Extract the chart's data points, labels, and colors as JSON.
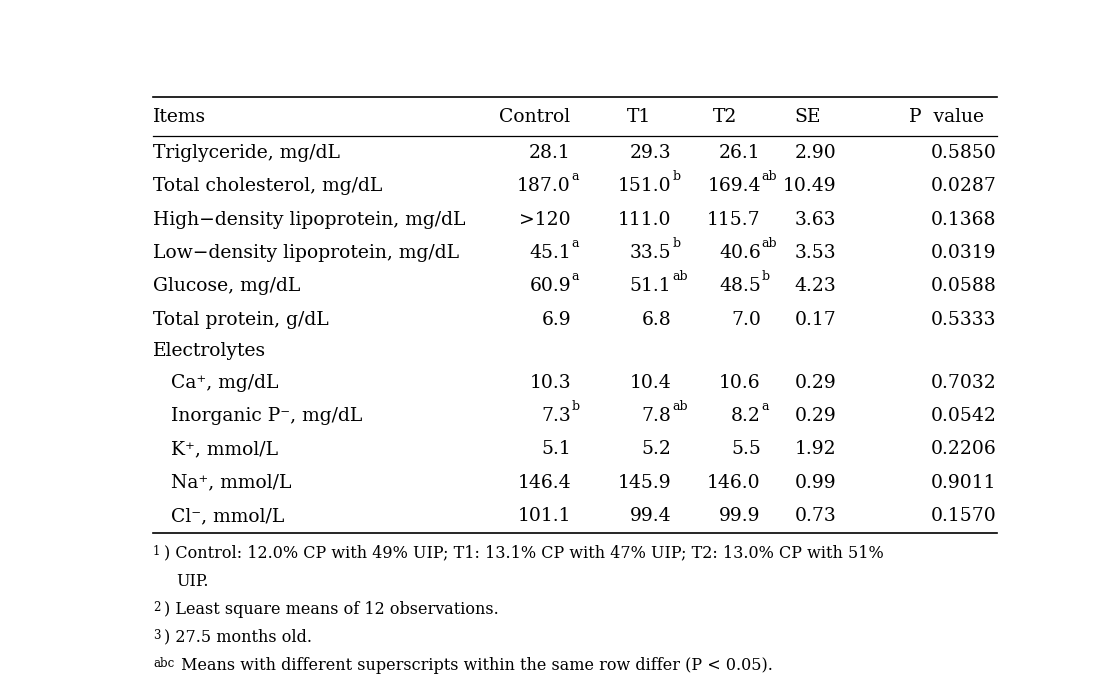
{
  "headers": [
    "Items",
    "Control",
    "T1",
    "T2",
    "SE",
    "P  value"
  ],
  "rows": [
    {
      "item": "Triglyceride, mg/dL",
      "cells": [
        "28.1",
        "29.3",
        "26.1",
        "2.90",
        "0.5850"
      ],
      "cell_sups": [
        "",
        "",
        "",
        "",
        ""
      ],
      "indent": false,
      "header_row": false
    },
    {
      "item": "Total cholesterol, mg/dL",
      "cells": [
        "187.0",
        "151.0",
        "169.4",
        "10.49",
        "0.0287"
      ],
      "cell_sups": [
        "a",
        "b",
        "ab",
        "",
        ""
      ],
      "indent": false,
      "header_row": false
    },
    {
      "item": "High−density lipoprotein, mg/dL",
      "cells": [
        ">120",
        "111.0",
        "115.7",
        "3.63",
        "0.1368"
      ],
      "cell_sups": [
        "",
        "",
        "",
        "",
        ""
      ],
      "indent": false,
      "header_row": false
    },
    {
      "item": "Low−density lipoprotein, mg/dL",
      "cells": [
        "45.1",
        "33.5",
        "40.6",
        "3.53",
        "0.0319"
      ],
      "cell_sups": [
        "a",
        "b",
        "ab",
        "",
        ""
      ],
      "indent": false,
      "header_row": false
    },
    {
      "item": "Glucose, mg/dL",
      "cells": [
        "60.9",
        "51.1",
        "48.5",
        "4.23",
        "0.0588"
      ],
      "cell_sups": [
        "a",
        "ab",
        "b",
        "",
        ""
      ],
      "indent": false,
      "header_row": false
    },
    {
      "item": "Total protein, g/dL",
      "cells": [
        "6.9",
        "6.8",
        "7.0",
        "0.17",
        "0.5333"
      ],
      "cell_sups": [
        "",
        "",
        "",
        "",
        ""
      ],
      "indent": false,
      "header_row": false
    },
    {
      "item": "Electrolytes",
      "cells": [
        "",
        "",
        "",
        "",
        ""
      ],
      "cell_sups": [
        "",
        "",
        "",
        "",
        ""
      ],
      "indent": false,
      "header_row": true
    },
    {
      "item": "Ca⁺, mg/dL",
      "cells": [
        "10.3",
        "10.4",
        "10.6",
        "0.29",
        "0.7032"
      ],
      "cell_sups": [
        "",
        "",
        "",
        "",
        ""
      ],
      "indent": true,
      "header_row": false
    },
    {
      "item": "Inorganic P⁻, mg/dL",
      "cells": [
        "7.3",
        "7.8",
        "8.2",
        "0.29",
        "0.0542"
      ],
      "cell_sups": [
        "b",
        "ab",
        "a",
        "",
        ""
      ],
      "indent": true,
      "header_row": false
    },
    {
      "item": "K⁺, mmol/L",
      "cells": [
        "5.1",
        "5.2",
        "5.5",
        "1.92",
        "0.2206"
      ],
      "cell_sups": [
        "",
        "",
        "",
        "",
        ""
      ],
      "indent": true,
      "header_row": false
    },
    {
      "item": "Na⁺, mmol/L",
      "cells": [
        "146.4",
        "145.9",
        "146.0",
        "0.99",
        "0.9011"
      ],
      "cell_sups": [
        "",
        "",
        "",
        "",
        ""
      ],
      "indent": true,
      "header_row": false
    },
    {
      "item": "Cl⁻, mmol/L",
      "cells": [
        "101.1",
        "99.4",
        "99.9",
        "0.73",
        "0.1570"
      ],
      "cell_sups": [
        "",
        "",
        "",
        "",
        ""
      ],
      "indent": true,
      "header_row": false
    }
  ],
  "footnotes": [
    [
      "1)",
      " Control: 12.0% CP with 49% UIP; T1: 13.1% CP with 47% UIP; T2: 13.0% CP with 51%"
    ],
    [
      "",
      "UIP."
    ],
    [
      "2)",
      " Least square means of 12 observations."
    ],
    [
      "3)",
      " 27.5 months old."
    ],
    [
      "abc",
      " Means with different superscripts within the same row differ (P < 0.05)."
    ]
  ],
  "font_size": 13.5,
  "sup_font_size": 9.0,
  "footnote_font_size": 11.5,
  "footnote_sup_size": 8.5
}
